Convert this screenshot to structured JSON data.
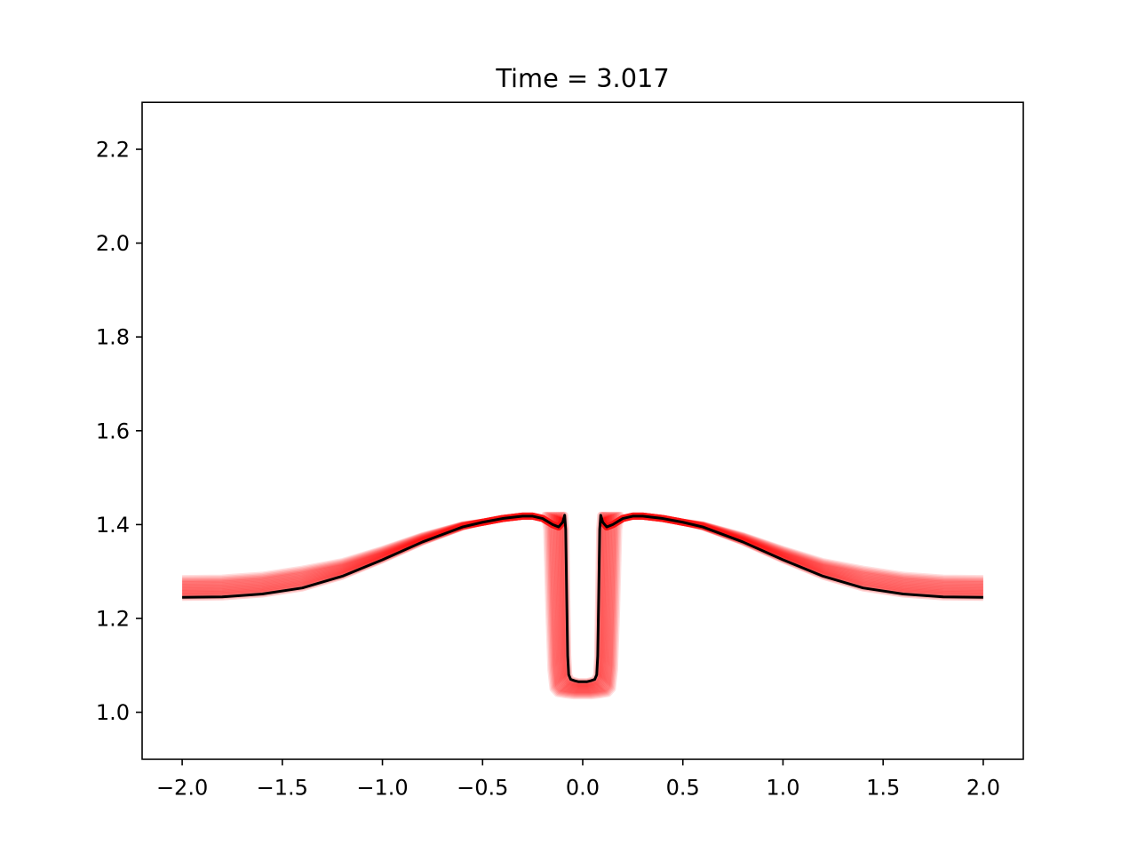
{
  "chart_data": {
    "type": "line",
    "title": "Time = 3.017",
    "xlabel": "",
    "ylabel": "",
    "xlim": [
      -2.2,
      2.2
    ],
    "ylim": [
      0.9,
      2.3
    ],
    "xticks": [
      -2.0,
      -1.5,
      -1.0,
      -0.5,
      0.0,
      0.5,
      1.0,
      1.5,
      2.0
    ],
    "yticks": [
      1.0,
      1.2,
      1.4,
      1.6,
      1.8,
      2.0,
      2.2
    ],
    "xtick_labels": [
      "−2.0",
      "−1.5",
      "−1.0",
      "−0.5",
      "0.0",
      "0.5",
      "1.0",
      "1.5",
      "2.0"
    ],
    "ytick_labels": [
      "1.0",
      "1.2",
      "1.4",
      "1.6",
      "1.8",
      "2.0",
      "2.2"
    ],
    "grid": false,
    "colors": {
      "history": "#ff0000",
      "current": "#000000"
    },
    "series": [
      {
        "role": "current",
        "color": "#000000",
        "x": [
          -2.0,
          -1.8,
          -1.6,
          -1.4,
          -1.2,
          -1.0,
          -0.8,
          -0.6,
          -0.5,
          -0.4,
          -0.3,
          -0.25,
          -0.2,
          -0.15,
          -0.12,
          -0.1,
          -0.09,
          -0.085,
          -0.08,
          -0.075,
          -0.07,
          -0.06,
          -0.04,
          -0.02,
          0.0,
          0.02,
          0.04,
          0.06,
          0.07,
          0.075,
          0.08,
          0.085,
          0.09,
          0.1,
          0.12,
          0.15,
          0.2,
          0.25,
          0.3,
          0.4,
          0.5,
          0.6,
          0.8,
          1.0,
          1.2,
          1.4,
          1.6,
          1.8,
          2.0
        ],
        "y": [
          1.245,
          1.246,
          1.252,
          1.265,
          1.29,
          1.325,
          1.363,
          1.395,
          1.405,
          1.413,
          1.418,
          1.418,
          1.413,
          1.4,
          1.395,
          1.405,
          1.42,
          1.39,
          1.25,
          1.12,
          1.08,
          1.07,
          1.067,
          1.065,
          1.065,
          1.065,
          1.067,
          1.07,
          1.08,
          1.12,
          1.25,
          1.39,
          1.42,
          1.405,
          1.395,
          1.4,
          1.413,
          1.418,
          1.418,
          1.413,
          1.405,
          1.395,
          1.363,
          1.325,
          1.29,
          1.265,
          1.252,
          1.246,
          1.245
        ]
      }
    ],
    "history": {
      "color": "#ff0000",
      "count": 16,
      "outer_left_y": 1.285,
      "outer_right_y": 1.285,
      "well_bottom_y": 1.035,
      "well_halfwidth": 0.18
    }
  }
}
